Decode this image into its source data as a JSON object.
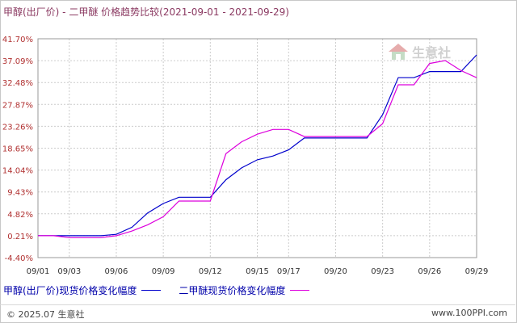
{
  "title": "甲醇(出厂价) - 二甲醚 价格趋势比较(2021-09-01 - 2021-09-29)",
  "watermark": "生意社",
  "footer": {
    "copyright": "© 2025.07 生意社",
    "site": "www.100PPI.com"
  },
  "colors": {
    "series1": "#0000cc",
    "series2": "#dd00dd",
    "grid": "#cccccc",
    "axis_label": "#b03030"
  },
  "chart_data": {
    "type": "line",
    "title": "甲醇(出厂价) - 二甲醚 价格趋势比较(2021-09-01 - 2021-09-29)",
    "x_ticks": [
      "09/01",
      "09/03",
      "09/06",
      "09/09",
      "09/12",
      "09/15",
      "09/17",
      "09/20",
      "09/23",
      "09/26",
      "09/29"
    ],
    "y_ticks": [
      "41.70%",
      "37.09%",
      "32.48%",
      "27.87%",
      "23.26%",
      "18.65%",
      "14.04%",
      "9.43%",
      "4.82%",
      "0.21%",
      "-4.40%"
    ],
    "ylim": [
      -4.4,
      41.7
    ],
    "grid": true,
    "legend_position": "bottom",
    "series": [
      {
        "name": "甲醇(出厂价)现货价格变化幅度",
        "color": "#0000cc",
        "points": [
          [
            "09/01",
            0.21
          ],
          [
            "09/02",
            0.21
          ],
          [
            "09/03",
            0.21
          ],
          [
            "09/04",
            0.21
          ],
          [
            "09/05",
            0.21
          ],
          [
            "09/06",
            0.5
          ],
          [
            "09/07",
            2.0
          ],
          [
            "09/08",
            5.0
          ],
          [
            "09/09",
            7.0
          ],
          [
            "09/10",
            8.3
          ],
          [
            "09/11",
            8.3
          ],
          [
            "09/12",
            8.3
          ],
          [
            "09/13",
            12.0
          ],
          [
            "09/14",
            14.5
          ],
          [
            "09/15",
            16.2
          ],
          [
            "09/16",
            17.0
          ],
          [
            "09/17",
            18.3
          ],
          [
            "09/18",
            20.8
          ],
          [
            "09/19",
            20.8
          ],
          [
            "09/20",
            20.8
          ],
          [
            "09/21",
            20.8
          ],
          [
            "09/22",
            20.8
          ],
          [
            "09/23",
            25.7
          ],
          [
            "09/24",
            33.5
          ],
          [
            "09/25",
            33.5
          ],
          [
            "09/26",
            34.8
          ],
          [
            "09/27",
            34.8
          ],
          [
            "09/28",
            34.8
          ],
          [
            "09/29",
            38.3
          ]
        ]
      },
      {
        "name": "二甲醚现货价格变化幅度",
        "color": "#dd00dd",
        "points": [
          [
            "09/01",
            0.21
          ],
          [
            "09/02",
            0.21
          ],
          [
            "09/03",
            -0.2
          ],
          [
            "09/04",
            -0.2
          ],
          [
            "09/05",
            -0.2
          ],
          [
            "09/06",
            0.21
          ],
          [
            "09/07",
            1.2
          ],
          [
            "09/08",
            2.5
          ],
          [
            "09/09",
            4.2
          ],
          [
            "09/10",
            7.5
          ],
          [
            "09/11",
            7.5
          ],
          [
            "09/12",
            7.5
          ],
          [
            "09/13",
            17.5
          ],
          [
            "09/14",
            20.0
          ],
          [
            "09/15",
            21.6
          ],
          [
            "09/16",
            22.6
          ],
          [
            "09/17",
            22.6
          ],
          [
            "09/18",
            21.1
          ],
          [
            "09/19",
            21.1
          ],
          [
            "09/20",
            21.1
          ],
          [
            "09/21",
            21.1
          ],
          [
            "09/22",
            21.1
          ],
          [
            "09/23",
            23.8
          ],
          [
            "09/24",
            32.0
          ],
          [
            "09/25",
            32.0
          ],
          [
            "09/26",
            36.5
          ],
          [
            "09/27",
            37.1
          ],
          [
            "09/28",
            35.0
          ],
          [
            "09/29",
            33.5
          ]
        ]
      }
    ]
  }
}
